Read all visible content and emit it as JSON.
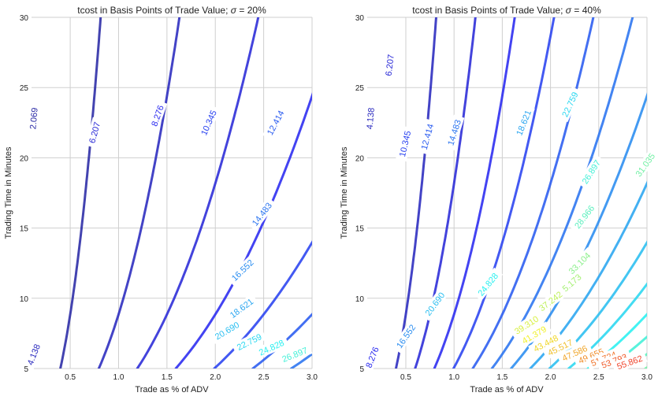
{
  "chart_data": [
    {
      "type": "contour",
      "title": "tcost in Basis Points of Trade Value; σ = 20%",
      "title_main": "tcost in Basis Points of Trade Value;",
      "title_sigma": "σ",
      "title_tail": "= 20%",
      "xlabel": "Trade as % of ADV",
      "ylabel": "Trading Time in Minutes",
      "xlim": [
        0.1,
        3.0
      ],
      "ylim": [
        5,
        30
      ],
      "grid": true,
      "x_ticks": [
        "0.5",
        "1.0",
        "1.5",
        "2.0",
        "2.5",
        "3.0"
      ],
      "y_ticks": [
        "5",
        "10",
        "15",
        "20",
        "25",
        "30"
      ],
      "vmax": 66.2,
      "levels": [
        {
          "value": 2.069,
          "label": "2.069",
          "label_at": {
            "x": 0.12,
            "y": 22.8
          }
        },
        {
          "value": 4.138,
          "label": "4.138",
          "label_at": {
            "x": 0.12,
            "y": 6.0
          }
        },
        {
          "value": 6.207,
          "label": "6.207",
          "label_at": {
            "x": 0.75,
            "y": 21.8
          }
        },
        {
          "value": 8.276,
          "label": "8.276",
          "label_at": {
            "x": 1.4,
            "y": 23.0
          }
        },
        {
          "value": 10.345,
          "label": "10.345",
          "label_at": {
            "x": 1.93,
            "y": 22.5
          }
        },
        {
          "value": 12.414,
          "label": "12.414",
          "label_at": {
            "x": 2.62,
            "y": 22.5
          }
        },
        {
          "value": 14.483,
          "label": "14.483",
          "label_at": {
            "x": 2.48,
            "y": 16.0
          }
        },
        {
          "value": 16.552,
          "label": "16.552",
          "label_at": {
            "x": 2.28,
            "y": 12.0
          }
        },
        {
          "value": 18.621,
          "label": "18.621",
          "label_at": {
            "x": 2.27,
            "y": 9.3
          }
        },
        {
          "value": 20.69,
          "label": "20.690",
          "label_at": {
            "x": 2.12,
            "y": 7.7
          }
        },
        {
          "value": 22.759,
          "label": "22.759",
          "label_at": {
            "x": 2.35,
            "y": 6.9
          }
        },
        {
          "value": 24.828,
          "label": "24.828",
          "label_at": {
            "x": 2.58,
            "y": 6.5
          }
        },
        {
          "value": 26.897,
          "label": "26.897",
          "label_at": {
            "x": 2.82,
            "y": 6.0
          }
        },
        {
          "value": 28.966,
          "label": ""
        },
        {
          "value": 31.035,
          "label": ""
        }
      ]
    },
    {
      "type": "contour",
      "title": "tcost in Basis Points of Trade Value; σ = 40%",
      "title_main": "tcost in Basis Points of Trade Value;",
      "title_sigma": "σ",
      "title_tail": "= 40%",
      "xlabel": "Trade as % of ADV",
      "ylabel": "Trading Time in Minutes",
      "xlim": [
        0.1,
        3.0
      ],
      "ylim": [
        5,
        30
      ],
      "grid": true,
      "x_ticks": [
        "0.5",
        "1.0",
        "1.5",
        "2.0",
        "2.5",
        "3.0"
      ],
      "y_ticks": [
        "5",
        "10",
        "15",
        "20",
        "25",
        "30"
      ],
      "vmax": 66.2,
      "levels": [
        {
          "value": 4.138,
          "label": "4.138",
          "label_at": {
            "x": 0.13,
            "y": 22.8
          }
        },
        {
          "value": 6.207,
          "label": "6.207",
          "label_at": {
            "x": 0.33,
            "y": 26.6
          }
        },
        {
          "value": 8.276,
          "label": "8.276",
          "label_at": {
            "x": 0.15,
            "y": 5.8
          }
        },
        {
          "value": 10.345,
          "label": "10.345",
          "label_at": {
            "x": 0.49,
            "y": 21.0
          }
        },
        {
          "value": 12.414,
          "label": "12.414",
          "label_at": {
            "x": 0.72,
            "y": 21.5
          }
        },
        {
          "value": 14.483,
          "label": "14.483",
          "label_at": {
            "x": 1.0,
            "y": 21.8
          }
        },
        {
          "value": 16.552,
          "label": "16.552",
          "label_at": {
            "x": 0.5,
            "y": 7.3
          }
        },
        {
          "value": 18.621,
          "label": "18.621",
          "label_at": {
            "x": 1.72,
            "y": 22.5
          }
        },
        {
          "value": 20.69,
          "label": "20.690",
          "label_at": {
            "x": 0.8,
            "y": 9.6
          }
        },
        {
          "value": 22.759,
          "label": "22.759",
          "label_at": {
            "x": 2.2,
            "y": 23.8
          }
        },
        {
          "value": 24.828,
          "label": "24.828",
          "label_at": {
            "x": 1.35,
            "y": 11.0
          }
        },
        {
          "value": 26.897,
          "label": "26.897",
          "label_at": {
            "x": 2.42,
            "y": 19.0
          }
        },
        {
          "value": 28.966,
          "label": "28.966",
          "label_at": {
            "x": 2.35,
            "y": 15.8
          }
        },
        {
          "value": 31.035,
          "label": "31.035",
          "label_at": {
            "x": 2.98,
            "y": 19.5
          }
        },
        {
          "value": 33.104,
          "label": "33.104",
          "label_at": {
            "x": 2.3,
            "y": 12.5
          }
        },
        {
          "value": 35.173,
          "label": "35.173",
          "label_at": {
            "x": 2.2,
            "y": 11.0
          }
        },
        {
          "value": 37.242,
          "label": "37.242",
          "label_at": {
            "x": 2.0,
            "y": 9.8
          }
        },
        {
          "value": 39.311,
          "label": "39.310",
          "label_at": {
            "x": 1.75,
            "y": 8.1
          }
        },
        {
          "value": 41.38,
          "label": "41.379",
          "label_at": {
            "x": 1.83,
            "y": 7.4
          }
        },
        {
          "value": 43.449,
          "label": "43.448",
          "label_at": {
            "x": 1.95,
            "y": 6.8
          }
        },
        {
          "value": 45.518,
          "label": "45.517",
          "label_at": {
            "x": 2.1,
            "y": 6.5
          }
        },
        {
          "value": 47.587,
          "label": "47.586",
          "label_at": {
            "x": 2.25,
            "y": 6.1
          }
        },
        {
          "value": 49.656,
          "label": "49.655",
          "label_at": {
            "x": 2.42,
            "y": 5.9
          }
        },
        {
          "value": 51.725,
          "label": "51.724",
          "label_at": {
            "x": 2.55,
            "y": 5.7
          }
        },
        {
          "value": 53.794,
          "label": "53.793",
          "label_at": {
            "x": 2.66,
            "y": 5.55
          }
        },
        {
          "value": 55.863,
          "label": "55.862",
          "label_at": {
            "x": 2.82,
            "y": 5.45
          }
        },
        {
          "value": 57.932,
          "label": ""
        },
        {
          "value": 60.001,
          "label": ""
        },
        {
          "value": 62.07,
          "label": ""
        },
        {
          "value": 64.139,
          "label": ""
        },
        {
          "value": 66.208,
          "label": ""
        }
      ]
    }
  ]
}
